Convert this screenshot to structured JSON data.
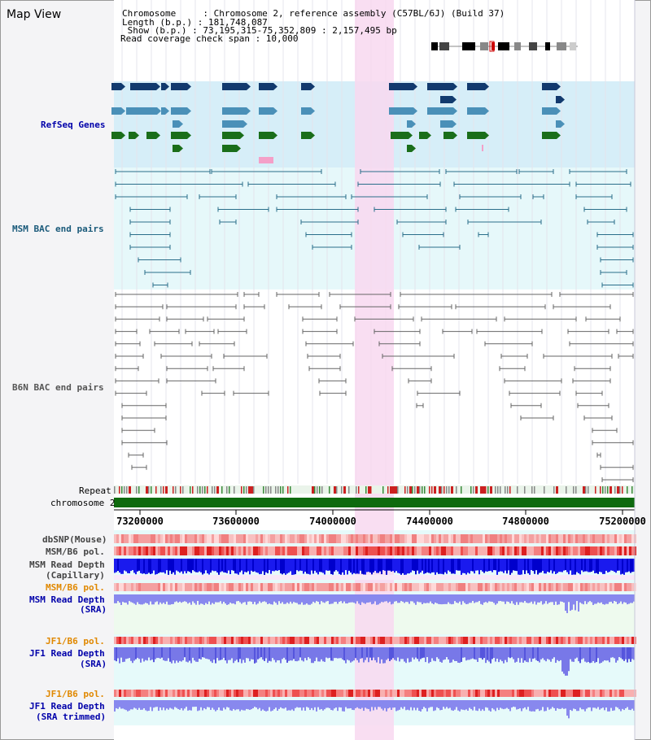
{
  "title": "Map View",
  "header": {
    "chromosome_label": "Chromosome     : Chromosome 2, reference assembly (C57BL/6J) (Build 37)",
    "length_label": "Length (b.p.) : 181,748,087",
    "show_label": " Show (b.p.) : 73,195,315-75,352,809 : 2,157,495 bp",
    "coverage_label": "Read coverage check span : 10,000"
  },
  "tracks": {
    "refseq": "RefSeq Genes",
    "msm_bac": "MSM BAC end pairs",
    "b6n_bac": "B6N BAC end pairs",
    "repeat": "Repeat",
    "chromosome": "chromosome 2",
    "dbsnp": "dbSNP(Mouse)",
    "msm_b6_pol": "MSM/B6 pol.",
    "msm_read_depth_cap_1": "MSM Read Depth",
    "msm_read_depth_cap_2": "(Capillary)",
    "msm_b6_pol_2": "MSM/B6 pol.",
    "msm_read_depth_sra_1": "MSM Read Depth",
    "msm_read_depth_sra_2": "(SRA)",
    "jf1_b6_pol": "JF1/B6 pol.",
    "jf1_read_depth_sra_1": "JF1 Read Depth",
    "jf1_read_depth_sra_2": "(SRA)",
    "jf1_b6_pol_2": "JF1/B6 pol.",
    "jf1_read_depth_trim_1": "JF1 Read Depth",
    "jf1_read_depth_trim_2": "(SRA trimmed)"
  },
  "axis": {
    "ticks": [
      "73200000",
      "73600000",
      "74000000",
      "74400000",
      "74800000",
      "75200000"
    ]
  },
  "colors": {
    "refseq_bg": "#d6eef8",
    "bac_bg": "#e6f8fa",
    "highlight": "#f8d8f0",
    "gene_dark": "#123a6e",
    "gene_mid": "#4a90b8",
    "gene_green": "#1a6e1a",
    "msm_bac": "#2a6e8a",
    "b6n_bac": "#666666",
    "depth_blue": "#1a1aee",
    "depth_light": "#8888ee",
    "pol_red": "#ee6666",
    "label_blue": "#0000aa",
    "label_orange": "#e08800"
  }
}
